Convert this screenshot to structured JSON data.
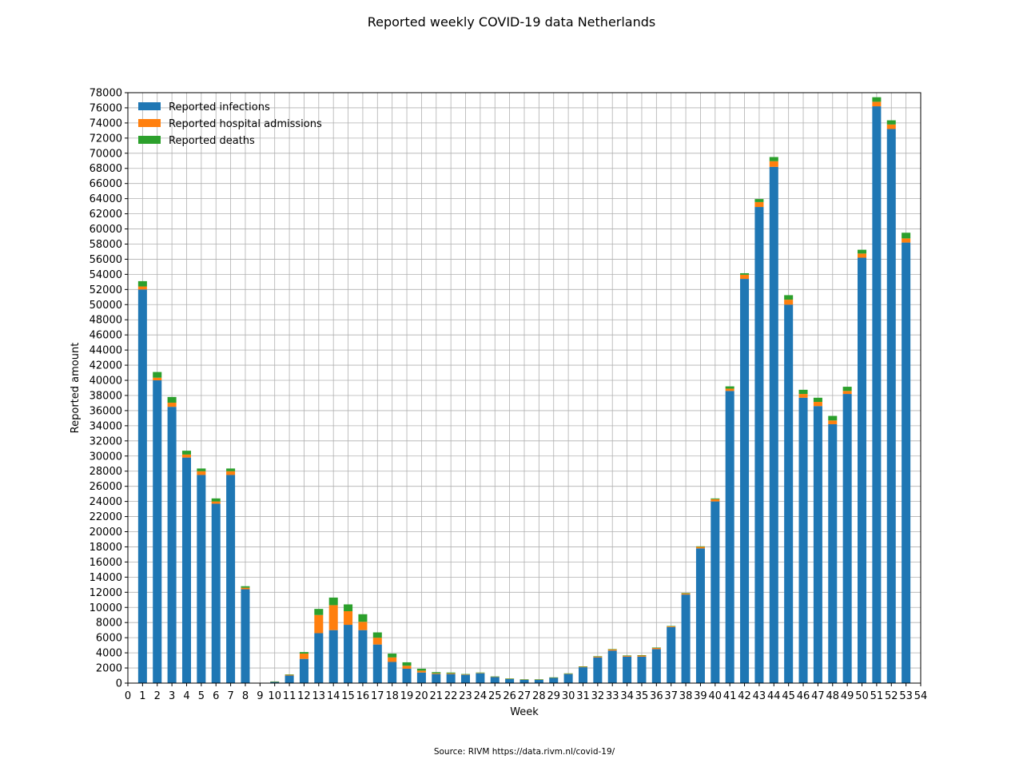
{
  "chart_data": {
    "type": "bar",
    "stacked": true,
    "title": "Reported weekly COVID-19 data Netherlands",
    "xlabel": "Week",
    "ylabel": "Reported amount",
    "source": "Source: RIVM https://data.rivm.nl/covid-19/",
    "xlim": [
      0,
      54
    ],
    "ylim": [
      0,
      78000
    ],
    "x_ticks": [
      0,
      1,
      2,
      3,
      4,
      5,
      6,
      7,
      8,
      9,
      10,
      11,
      12,
      13,
      14,
      15,
      16,
      17,
      18,
      19,
      20,
      21,
      22,
      23,
      24,
      25,
      26,
      27,
      28,
      29,
      30,
      31,
      32,
      33,
      34,
      35,
      36,
      37,
      38,
      39,
      40,
      41,
      42,
      43,
      44,
      45,
      46,
      47,
      48,
      49,
      50,
      51,
      52,
      53,
      54
    ],
    "y_ticks": [
      0,
      2000,
      4000,
      6000,
      8000,
      10000,
      12000,
      14000,
      16000,
      18000,
      20000,
      22000,
      24000,
      26000,
      28000,
      30000,
      32000,
      34000,
      36000,
      38000,
      40000,
      42000,
      44000,
      46000,
      48000,
      50000,
      52000,
      54000,
      56000,
      58000,
      60000,
      62000,
      64000,
      66000,
      68000,
      70000,
      72000,
      74000,
      76000,
      78000
    ],
    "grid": true,
    "legend_position": "top-left",
    "categories": [
      1,
      2,
      3,
      4,
      5,
      6,
      7,
      8,
      9,
      10,
      11,
      12,
      13,
      14,
      15,
      16,
      17,
      18,
      19,
      20,
      21,
      22,
      23,
      24,
      25,
      26,
      27,
      28,
      29,
      30,
      31,
      32,
      33,
      34,
      35,
      36,
      37,
      38,
      39,
      40,
      41,
      42,
      43,
      44,
      45,
      46,
      47,
      48,
      49,
      50,
      51,
      52,
      53
    ],
    "series": [
      {
        "name": "Reported infections",
        "color": "#1f77b4",
        "values": [
          52000,
          40000,
          36500,
          29800,
          27500,
          23700,
          27500,
          12400,
          0,
          150,
          1000,
          3200,
          6600,
          7000,
          7700,
          7000,
          5100,
          2800,
          1900,
          1400,
          1200,
          1200,
          1100,
          1300,
          800,
          550,
          450,
          450,
          700,
          1200,
          2100,
          3400,
          4300,
          3500,
          3500,
          4500,
          7400,
          11700,
          17800,
          24000,
          38600,
          53400,
          62900,
          68200,
          50000,
          37700,
          36600,
          34200,
          38200,
          56200,
          76200,
          73200,
          58200
        ]
      },
      {
        "name": "Reported hospital admissions",
        "color": "#ff7f0e",
        "values": [
          400,
          350,
          550,
          400,
          500,
          300,
          500,
          200,
          0,
          50,
          100,
          700,
          2400,
          3300,
          1800,
          1100,
          900,
          600,
          400,
          250,
          100,
          100,
          50,
          50,
          50,
          40,
          30,
          30,
          40,
          60,
          80,
          120,
          150,
          120,
          150,
          150,
          100,
          150,
          200,
          300,
          300,
          550,
          650,
          750,
          650,
          500,
          550,
          500,
          400,
          550,
          600,
          600,
          550
        ]
      },
      {
        "name": "Reported deaths",
        "color": "#2ca02c",
        "values": [
          700,
          750,
          750,
          500,
          350,
          400,
          350,
          200,
          0,
          20,
          50,
          200,
          800,
          1000,
          900,
          1000,
          700,
          500,
          450,
          250,
          150,
          100,
          50,
          50,
          30,
          20,
          20,
          20,
          20,
          30,
          30,
          40,
          50,
          40,
          40,
          50,
          50,
          60,
          70,
          100,
          300,
          200,
          400,
          550,
          600,
          550,
          550,
          600,
          550,
          500,
          600,
          550,
          750
        ]
      }
    ]
  }
}
